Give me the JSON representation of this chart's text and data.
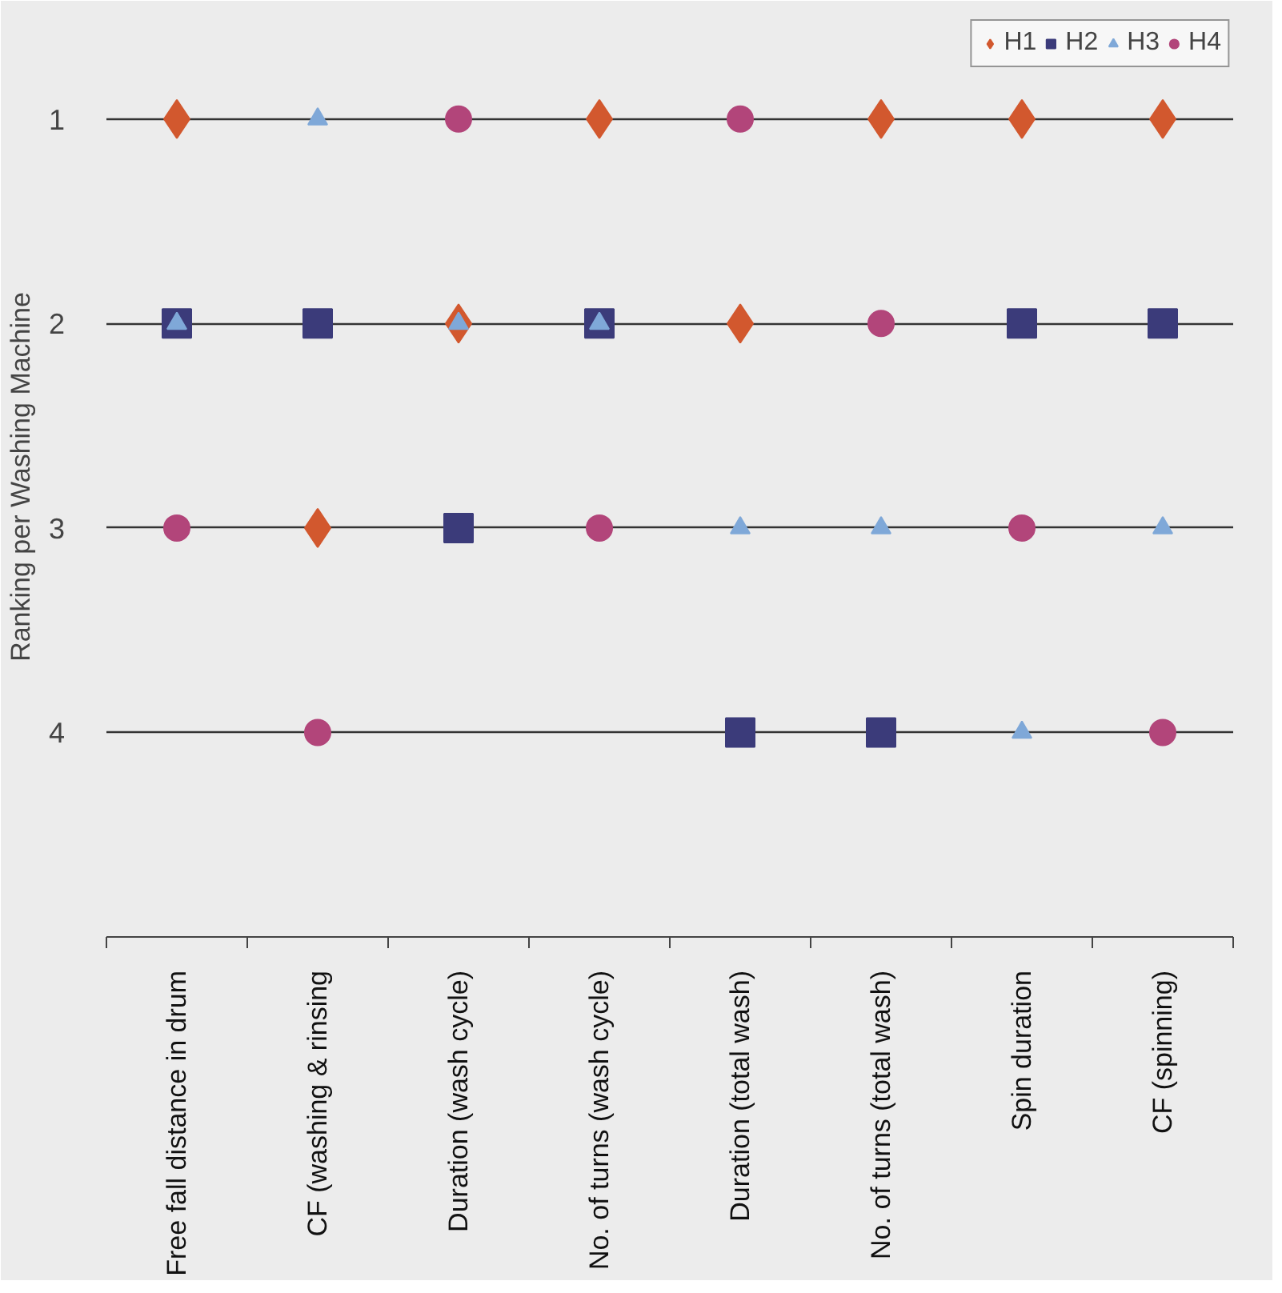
{
  "chart_data": {
    "type": "scatter",
    "ylabel": "Ranking per Washing Machine",
    "categories": [
      "Free fall distance in drum",
      "CF (washing & rinsing",
      "Duration (wash cycle)",
      "No. of turns (wash cycle)",
      "Duration (total wash)",
      "No. of turns (total wash)",
      "Spin duration",
      "CF (spinning)"
    ],
    "series": [
      {
        "name": "H1",
        "color": "#d2582e",
        "marker": "diamond",
        "values": [
          1,
          3,
          2,
          1,
          2,
          1,
          1,
          1
        ]
      },
      {
        "name": "H2",
        "color": "#3b3b7a",
        "marker": "square",
        "values": [
          2,
          2,
          3,
          2,
          4,
          4,
          2,
          2
        ]
      },
      {
        "name": "H3",
        "color": "#7fa8d8",
        "marker": "triangle",
        "values": [
          2,
          1,
          2,
          2,
          3,
          3,
          4,
          3
        ]
      },
      {
        "name": "H4",
        "color": "#b2457a",
        "marker": "circle",
        "values": [
          3,
          4,
          1,
          3,
          1,
          2,
          3,
          4
        ]
      }
    ],
    "ylim": [
      5,
      0.5
    ],
    "yticks": [
      1,
      2,
      3,
      4
    ],
    "grid": "y",
    "legend": "top right"
  }
}
